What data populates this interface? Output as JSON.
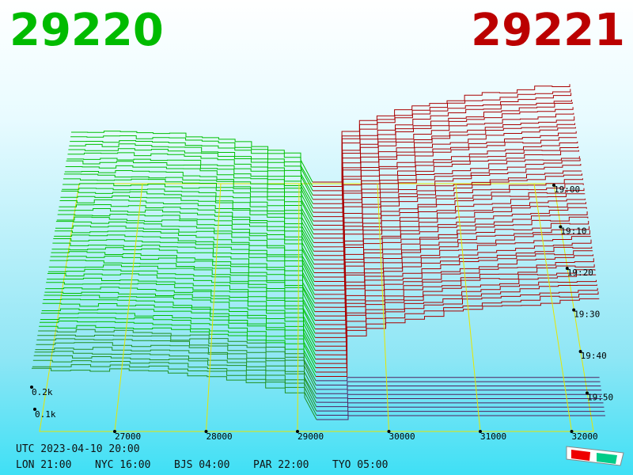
{
  "header": {
    "bid": "29220",
    "ask": "29221"
  },
  "price_axis": [
    "27000",
    "28000",
    "29000",
    "30000",
    "31000",
    "32000"
  ],
  "time_axis": [
    "19:00",
    "19:10",
    "19:20",
    "19:30",
    "19:40",
    "19:50"
  ],
  "depth_axis": [
    "0.2k",
    "0.1k"
  ],
  "footer": {
    "utc": "UTC 2023-04-10 20:00",
    "cities": [
      "LON 21:00",
      "NYC 16:00",
      "BJS 04:00",
      "PAR 22:00",
      "TYO 05:00"
    ]
  }
}
